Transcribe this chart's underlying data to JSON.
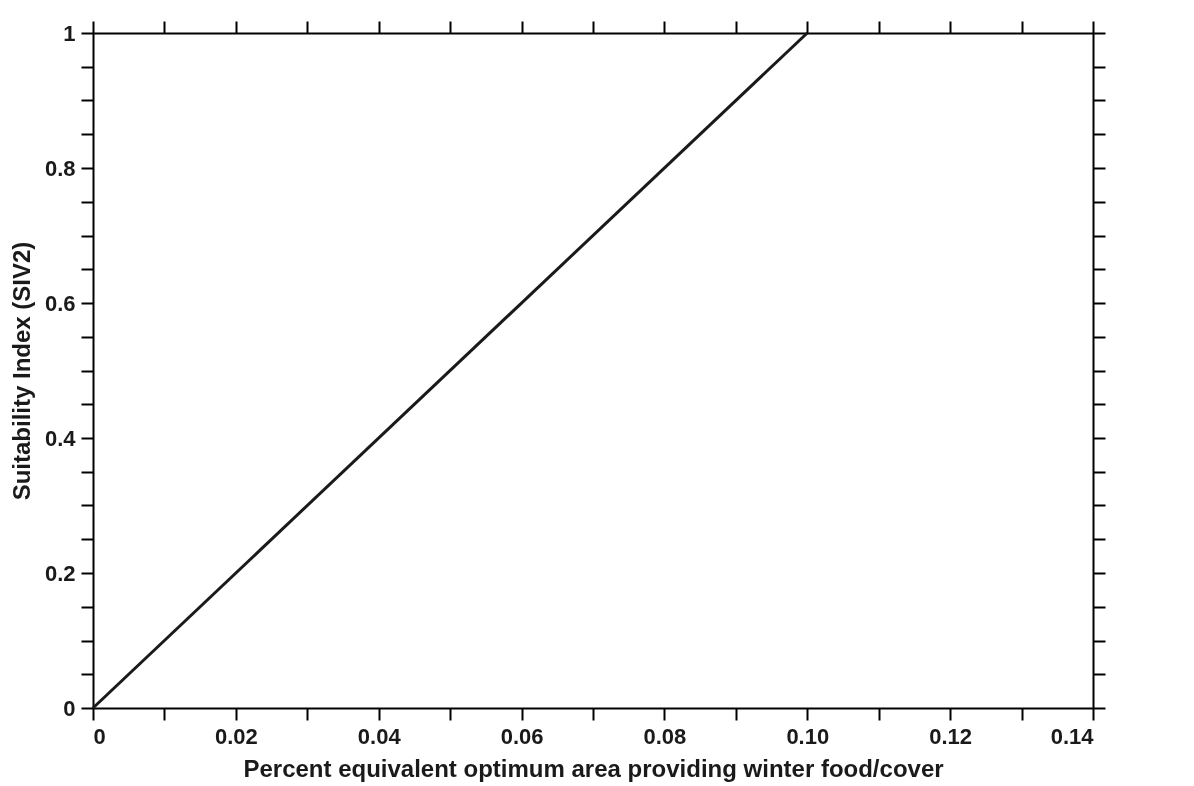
{
  "chart_data": {
    "type": "line",
    "xlabel": "Percent equivalent optimum area providing winter food/cover",
    "ylabel": "Suitability Index (SIV2)",
    "x": [
      0,
      0.1
    ],
    "series": [
      {
        "color": "#1a1a1a",
        "values": [
          0,
          1
        ]
      }
    ],
    "xlim": [
      0,
      0.14
    ],
    "xticks": [
      0,
      {
        "value": 0.01,
        "label": null
      },
      0.02,
      {
        "value": 0.03,
        "label": null
      },
      0.04,
      {
        "value": 0.05,
        "label": null
      },
      0.06,
      {
        "value": 0.07,
        "label": null
      },
      0.08,
      {
        "value": 0.09,
        "label": null
      },
      {
        "value": 0.1,
        "label": "0.10"
      },
      {
        "value": 0.11,
        "label": null
      },
      0.12,
      {
        "value": 0.13,
        "label": null
      },
      0.14
    ],
    "ylim": [
      0,
      1
    ],
    "yticks": [
      0,
      {
        "value": 0.05,
        "label": null
      },
      {
        "value": 0.1,
        "label": null
      },
      {
        "value": 0.15,
        "label": null
      },
      0.2,
      {
        "value": 0.25,
        "label": null
      },
      {
        "value": 0.3,
        "label": null
      },
      {
        "value": 0.35,
        "label": null
      },
      0.4,
      {
        "value": 0.45,
        "label": null
      },
      {
        "value": 0.5,
        "label": null
      },
      {
        "value": 0.55,
        "label": null
      },
      0.6,
      {
        "value": 0.65,
        "label": null
      },
      {
        "value": 0.7,
        "label": null
      },
      {
        "value": 0.75,
        "label": null
      },
      0.8,
      {
        "value": 0.85,
        "label": null
      },
      {
        "value": 0.9,
        "label": null
      },
      {
        "value": 0.95,
        "label": null
      },
      1
    ],
    "grid": false,
    "marker": "none",
    "line_style": "solid"
  }
}
